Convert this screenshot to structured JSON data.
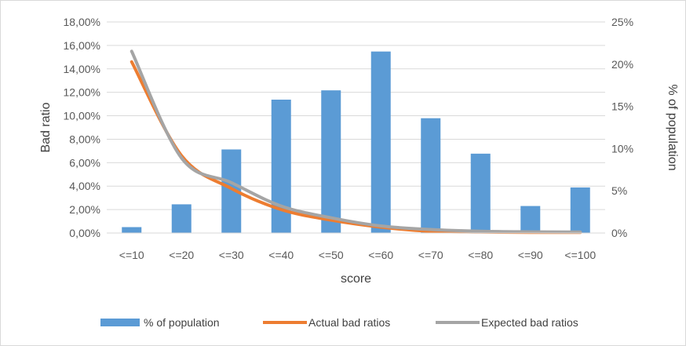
{
  "chart_data": {
    "type": "bar",
    "categories": [
      "<=10",
      "<=20",
      "<=30",
      "<=40",
      "<=50",
      "<=60",
      "<=70",
      "<=80",
      "<=90",
      "<=100"
    ],
    "series": [
      {
        "name": "% of population",
        "type": "bar",
        "axis": "right",
        "color": "#5b9bd5",
        "values": [
          0.7,
          3.4,
          9.9,
          15.8,
          16.9,
          21.5,
          13.6,
          9.4,
          3.2,
          5.4
        ]
      },
      {
        "name": "Actual bad ratios",
        "type": "line",
        "axis": "left",
        "color": "#ed7d31",
        "values": [
          14.6,
          6.6,
          3.8,
          2.0,
          1.1,
          0.5,
          0.15,
          0.08,
          0.05,
          0.05
        ]
      },
      {
        "name": "Expected bad ratios",
        "type": "line",
        "axis": "left",
        "color": "#a5a5a5",
        "values": [
          15.5,
          6.4,
          4.3,
          2.3,
          1.3,
          0.6,
          0.3,
          0.15,
          0.1,
          0.08
        ]
      }
    ],
    "xlabel": "score",
    "ylabel": "Bad ratio",
    "y2label": "% of population",
    "ylim": [
      0,
      18
    ],
    "y2lim": [
      0,
      25
    ],
    "yticks": [
      "0,00%",
      "2,00%",
      "4,00%",
      "6,00%",
      "8,00%",
      "10,00%",
      "12,00%",
      "14,00%",
      "16,00%",
      "18,00%"
    ],
    "y2ticks": [
      "0%",
      "5%",
      "10%",
      "15%",
      "20%",
      "25%"
    ],
    "grid": true,
    "legend_position": "bottom"
  }
}
